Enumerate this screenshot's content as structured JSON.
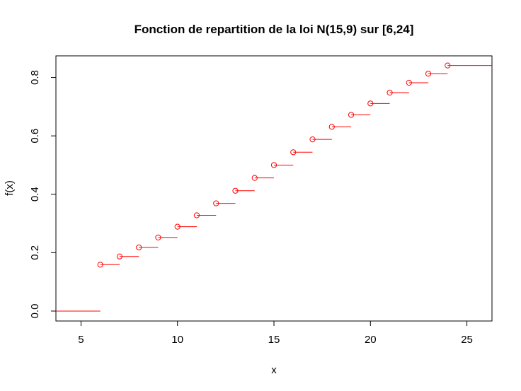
{
  "chart_data": {
    "type": "line",
    "title": "Fonction de repartition de la loi N(15,9) sur [6,24]",
    "xlabel": "x",
    "ylabel": "f(x)",
    "xlim": [
      3.7,
      26.3
    ],
    "ylim": [
      -0.034,
      0.874
    ],
    "xticks": [
      5,
      10,
      15,
      20,
      25
    ],
    "xtick_labels": [
      "5",
      "10",
      "15",
      "20",
      "25"
    ],
    "yticks": [
      0.0,
      0.2,
      0.4,
      0.6,
      0.8
    ],
    "ytick_labels": [
      "0.0",
      "0.2",
      "0.4",
      "0.6",
      "0.8"
    ],
    "grid": false,
    "step_color": "#ff0000",
    "series": [
      {
        "style": "step (empirical CDF style)",
        "x": [
          6,
          7,
          8,
          9,
          10,
          11,
          12,
          13,
          14,
          15,
          16,
          17,
          18,
          19,
          20,
          21,
          22,
          23,
          24
        ],
        "y": [
          0.159,
          0.187,
          0.218,
          0.252,
          0.289,
          0.328,
          0.369,
          0.412,
          0.456,
          0.5,
          0.544,
          0.588,
          0.631,
          0.672,
          0.711,
          0.748,
          0.782,
          0.813,
          0.841
        ],
        "initial_segment": {
          "x_from": 3.7,
          "x_to": 6,
          "y": 0.0
        }
      }
    ]
  }
}
